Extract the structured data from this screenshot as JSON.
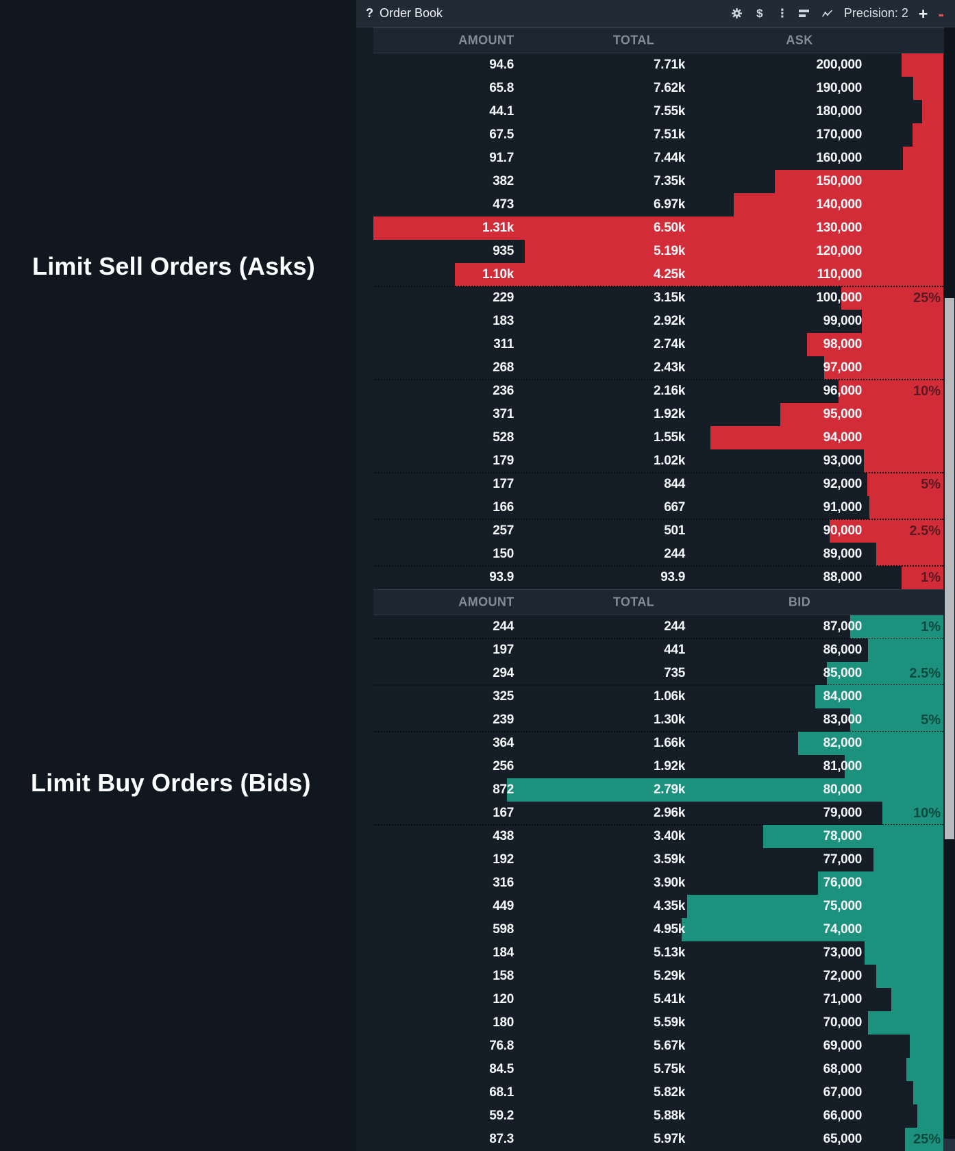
{
  "annotations": {
    "asks_label": "Limit Sell Orders (Asks)",
    "bids_label": "Limit Buy Orders (Bids)"
  },
  "titlebar": {
    "help_glyph": "?",
    "title": "Order Book",
    "dollar_glyph": "$",
    "kebab_glyph": "⋮",
    "precision_label": "Precision: 2",
    "plus_label": "+",
    "minus_label": "-"
  },
  "colors": {
    "ask_red": "#d12c38",
    "bid_green": "#1c917d",
    "panel_bg": "#151d27",
    "page_bg": "#10171f"
  },
  "asks": {
    "headers": [
      "AMOUNT",
      "TOTAL",
      "ASK"
    ],
    "rows": [
      {
        "amount": "94.6",
        "total": "7.71k",
        "price": "200,000",
        "bar": 7.2
      },
      {
        "amount": "65.8",
        "total": "7.62k",
        "price": "190,000",
        "bar": 5.2
      },
      {
        "amount": "44.1",
        "total": "7.55k",
        "price": "180,000",
        "bar": 3.6
      },
      {
        "amount": "67.5",
        "total": "7.51k",
        "price": "170,000",
        "bar": 5.3
      },
      {
        "amount": "91.7",
        "total": "7.44k",
        "price": "160,000",
        "bar": 7.0
      },
      {
        "amount": "382",
        "total": "7.35k",
        "price": "150,000",
        "bar": 29
      },
      {
        "amount": "473",
        "total": "6.97k",
        "price": "140,000",
        "bar": 36
      },
      {
        "amount": "1.31k",
        "total": "6.50k",
        "price": "130,000",
        "bar": 98
      },
      {
        "amount": "935",
        "total": "5.19k",
        "price": "120,000",
        "bar": 72
      },
      {
        "amount": "1.10k",
        "total": "4.25k",
        "price": "110,000",
        "bar": 84
      },
      {
        "amount": "229",
        "total": "3.15k",
        "price": "100,000",
        "bar": 17.5,
        "pct": "25%",
        "dot": "top"
      },
      {
        "amount": "183",
        "total": "2.92k",
        "price": "99,000",
        "bar": 14
      },
      {
        "amount": "311",
        "total": "2.74k",
        "price": "98,000",
        "bar": 23.5
      },
      {
        "amount": "268",
        "total": "2.43k",
        "price": "97,000",
        "bar": 20.5
      },
      {
        "amount": "236",
        "total": "2.16k",
        "price": "96,000",
        "bar": 18,
        "pct": "10%",
        "dot": "top"
      },
      {
        "amount": "371",
        "total": "1.92k",
        "price": "95,000",
        "bar": 28
      },
      {
        "amount": "528",
        "total": "1.55k",
        "price": "94,000",
        "bar": 40
      },
      {
        "amount": "179",
        "total": "1.02k",
        "price": "93,000",
        "bar": 13.7
      },
      {
        "amount": "177",
        "total": "844",
        "price": "92,000",
        "bar": 13.1,
        "pct": "5%",
        "dot": "top"
      },
      {
        "amount": "166",
        "total": "667",
        "price": "91,000",
        "bar": 12.7
      },
      {
        "amount": "257",
        "total": "501",
        "price": "90,000",
        "bar": 19.5,
        "pct": "2.5%",
        "dot": "top"
      },
      {
        "amount": "150",
        "total": "244",
        "price": "89,000",
        "bar": 11.6
      },
      {
        "amount": "93.9",
        "total": "93.9",
        "price": "88,000",
        "bar": 7.2,
        "pct": "1%",
        "dot": "top"
      }
    ]
  },
  "bids": {
    "headers": [
      "AMOUNT",
      "TOTAL",
      "BID"
    ],
    "rows": [
      {
        "amount": "244",
        "total": "244",
        "price": "87,000",
        "bar": 16,
        "pct": "1%",
        "dot": "bottom"
      },
      {
        "amount": "197",
        "total": "441",
        "price": "86,000",
        "bar": 13
      },
      {
        "amount": "294",
        "total": "735",
        "price": "85,000",
        "bar": 20,
        "pct": "2.5%",
        "dot": "bottom"
      },
      {
        "amount": "325",
        "total": "1.06k",
        "price": "84,000",
        "bar": 22
      },
      {
        "amount": "239",
        "total": "1.30k",
        "price": "83,000",
        "bar": 16,
        "pct": "5%",
        "dot": "bottom"
      },
      {
        "amount": "364",
        "total": "1.66k",
        "price": "82,000",
        "bar": 25
      },
      {
        "amount": "256",
        "total": "1.92k",
        "price": "81,000",
        "bar": 17
      },
      {
        "amount": "872",
        "total": "2.79k",
        "price": "80,000",
        "bar": 75
      },
      {
        "amount": "167",
        "total": "2.96k",
        "price": "79,000",
        "bar": 10.5,
        "pct": "10%",
        "dot": "bottom"
      },
      {
        "amount": "438",
        "total": "3.40k",
        "price": "78,000",
        "bar": 31
      },
      {
        "amount": "192",
        "total": "3.59k",
        "price": "77,000",
        "bar": 12
      },
      {
        "amount": "316",
        "total": "3.90k",
        "price": "76,000",
        "bar": 21.6
      },
      {
        "amount": "449",
        "total": "4.35k",
        "price": "75,000",
        "bar": 44
      },
      {
        "amount": "598",
        "total": "4.95k",
        "price": "74,000",
        "bar": 45
      },
      {
        "amount": "184",
        "total": "5.13k",
        "price": "73,000",
        "bar": 13.5
      },
      {
        "amount": "158",
        "total": "5.29k",
        "price": "72,000",
        "bar": 11.5
      },
      {
        "amount": "120",
        "total": "5.41k",
        "price": "71,000",
        "bar": 9
      },
      {
        "amount": "180",
        "total": "5.59k",
        "price": "70,000",
        "bar": 13
      },
      {
        "amount": "76.8",
        "total": "5.67k",
        "price": "69,000",
        "bar": 5.8
      },
      {
        "amount": "84.5",
        "total": "5.75k",
        "price": "68,000",
        "bar": 6.4
      },
      {
        "amount": "68.1",
        "total": "5.82k",
        "price": "67,000",
        "bar": 5.2
      },
      {
        "amount": "59.2",
        "total": "5.88k",
        "price": "66,000",
        "bar": 4.5
      },
      {
        "amount": "87.3",
        "total": "5.97k",
        "price": "65,000",
        "bar": 6.6,
        "pct": "25%"
      }
    ]
  }
}
